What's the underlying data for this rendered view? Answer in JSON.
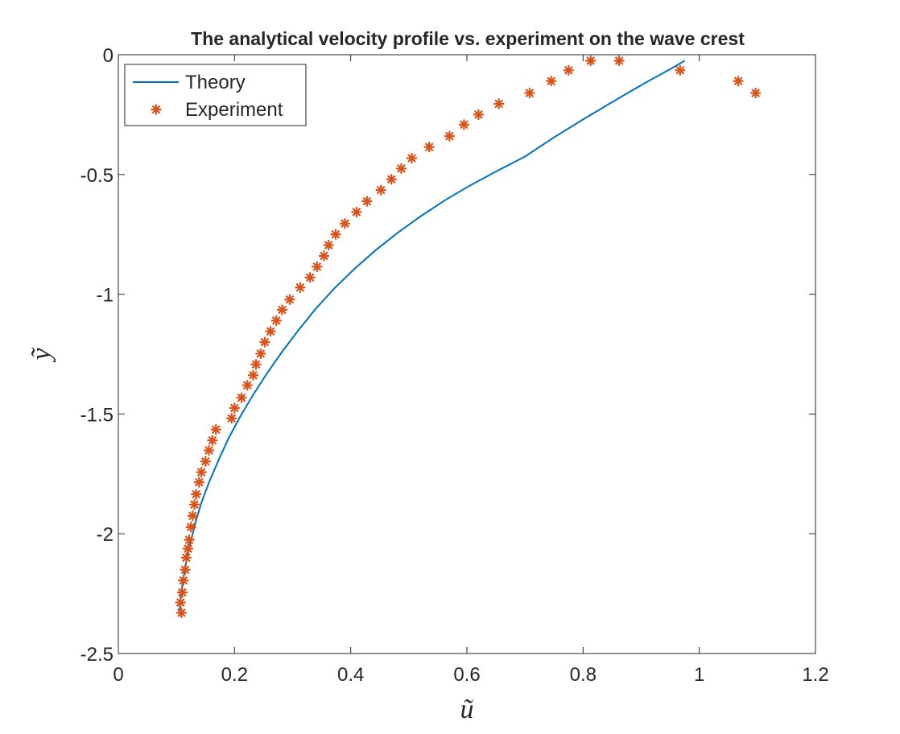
{
  "chart_data": {
    "type": "line",
    "title": "The analytical velocity profile vs. experiment on the wave crest",
    "xlabel": "ũ",
    "ylabel": "ỹ",
    "xlim": [
      0,
      1.2
    ],
    "ylim": [
      -2.5,
      0
    ],
    "xticks": [
      0,
      0.2,
      0.4,
      0.6,
      0.8,
      1,
      1.2
    ],
    "yticks": [
      0,
      -0.5,
      -1,
      -1.5,
      -2,
      -2.5
    ],
    "xtick_labels": [
      "0",
      "0.2",
      "0.4",
      "0.6",
      "0.8",
      "1",
      "1.2"
    ],
    "ytick_labels": [
      "0",
      "-0.5",
      "-1",
      "-1.5",
      "-2",
      "-2.5"
    ],
    "grid": false,
    "box": true,
    "legend_position": "top-left",
    "series": [
      {
        "name": "Theory",
        "style": "line",
        "color": "#0072BD",
        "x": [
          0.105,
          0.107,
          0.111,
          0.116,
          0.123,
          0.132,
          0.143,
          0.157,
          0.173,
          0.19,
          0.21,
          0.232,
          0.256,
          0.282,
          0.31,
          0.34,
          0.372,
          0.406,
          0.442,
          0.48,
          0.52,
          0.562,
          0.606,
          0.652,
          0.7,
          0.75,
          0.8,
          0.852,
          0.905,
          0.95,
          0.975
        ],
        "y": [
          -2.33,
          -2.27,
          -2.2,
          -2.13,
          -2.05,
          -1.96,
          -1.87,
          -1.78,
          -1.69,
          -1.6,
          -1.51,
          -1.42,
          -1.33,
          -1.24,
          -1.15,
          -1.06,
          -0.975,
          -0.895,
          -0.818,
          -0.745,
          -0.675,
          -0.608,
          -0.545,
          -0.485,
          -0.425,
          -0.345,
          -0.27,
          -0.195,
          -0.12,
          -0.06,
          -0.025
        ]
      },
      {
        "name": "Experiment",
        "style": "markers",
        "marker": "asterisk",
        "color": "#D95319",
        "x": [
          0.1085,
          0.107,
          0.11,
          0.112,
          0.115,
          0.117,
          0.12,
          0.122,
          0.125,
          0.128,
          0.131,
          0.134,
          0.139,
          0.143,
          0.15,
          0.156,
          0.162,
          0.168,
          0.195,
          0.2,
          0.212,
          0.222,
          0.232,
          0.237,
          0.245,
          0.252,
          0.262,
          0.272,
          0.282,
          0.295,
          0.313,
          0.33,
          0.342,
          0.354,
          0.362,
          0.374,
          0.39,
          0.41,
          0.428,
          0.452,
          0.47,
          0.487,
          0.505,
          0.535,
          0.57,
          0.595,
          0.62,
          0.655,
          0.708,
          0.745,
          0.775,
          0.813,
          0.862,
          0.967,
          1.067,
          1.097
        ],
        "y": [
          -2.33,
          -2.287,
          -2.245,
          -2.195,
          -2.15,
          -2.1,
          -2.062,
          -2.025,
          -1.972,
          -1.925,
          -1.878,
          -1.835,
          -1.785,
          -1.743,
          -1.698,
          -1.652,
          -1.61,
          -1.565,
          -1.518,
          -1.475,
          -1.432,
          -1.38,
          -1.338,
          -1.293,
          -1.248,
          -1.2,
          -1.155,
          -1.11,
          -1.065,
          -1.022,
          -0.972,
          -0.93,
          -0.885,
          -0.84,
          -0.795,
          -0.75,
          -0.705,
          -0.657,
          -0.612,
          -0.565,
          -0.52,
          -0.475,
          -0.432,
          -0.385,
          -0.34,
          -0.292,
          -0.25,
          -0.205,
          -0.16,
          -0.11,
          -0.065,
          -0.025,
          -0.025,
          -0.065,
          -0.11,
          -0.16
        ]
      }
    ]
  }
}
